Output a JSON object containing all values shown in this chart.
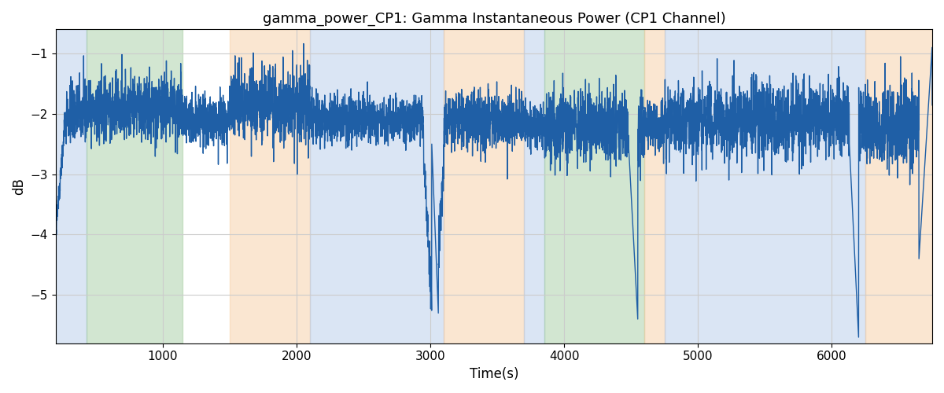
{
  "title": "gamma_power_CP1: Gamma Instantaneous Power (CP1 Channel)",
  "xlabel": "Time(s)",
  "ylabel": "dB",
  "xlim": [
    200,
    6750
  ],
  "ylim": [
    -5.8,
    -0.6
  ],
  "yticks": [
    -5,
    -4,
    -3,
    -2,
    -1
  ],
  "line_color": "#1f5fa6",
  "line_width": 1.0,
  "background_color": "#ffffff",
  "grid_color": "#cccccc",
  "bands": [
    {
      "xmin": 200,
      "xmax": 430,
      "color": "#aec6e8",
      "alpha": 0.45
    },
    {
      "xmin": 430,
      "xmax": 1150,
      "color": "#9dc99a",
      "alpha": 0.45
    },
    {
      "xmin": 1500,
      "xmax": 2100,
      "color": "#f5c99a",
      "alpha": 0.45
    },
    {
      "xmin": 2100,
      "xmax": 3100,
      "color": "#aec6e8",
      "alpha": 0.45
    },
    {
      "xmin": 3100,
      "xmax": 3700,
      "color": "#f5c99a",
      "alpha": 0.45
    },
    {
      "xmin": 3700,
      "xmax": 3850,
      "color": "#aec6e8",
      "alpha": 0.45
    },
    {
      "xmin": 3850,
      "xmax": 4600,
      "color": "#9dc99a",
      "alpha": 0.45
    },
    {
      "xmin": 4600,
      "xmax": 4750,
      "color": "#f5c99a",
      "alpha": 0.45
    },
    {
      "xmin": 4750,
      "xmax": 6250,
      "color": "#aec6e8",
      "alpha": 0.45
    },
    {
      "xmin": 6250,
      "xmax": 6750,
      "color": "#f5c99a",
      "alpha": 0.45
    }
  ],
  "seed": 42,
  "n_points": 6550
}
